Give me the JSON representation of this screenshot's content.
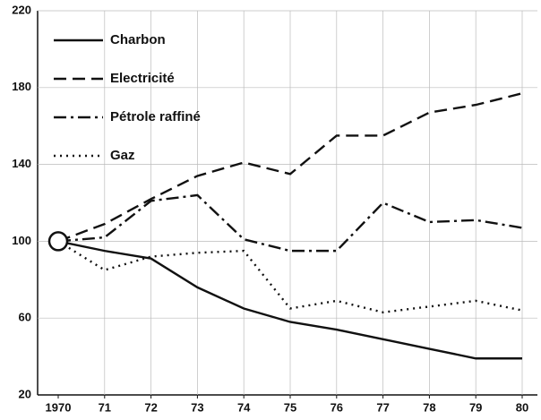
{
  "chart_data": {
    "type": "line",
    "categories": [
      "1970",
      "71",
      "72",
      "73",
      "74",
      "75",
      "76",
      "77",
      "78",
      "79",
      "80"
    ],
    "series": [
      {
        "name": "Charbon",
        "color": "#111111",
        "dash": "solid",
        "values": [
          100,
          95,
          91,
          76,
          65,
          58,
          54,
          49,
          44,
          39,
          39
        ]
      },
      {
        "name": "Electricité",
        "color": "#111111",
        "dash": "dashed",
        "values": [
          100,
          109,
          122,
          134,
          141,
          135,
          155,
          155,
          167,
          171,
          177
        ]
      },
      {
        "name": "Pétrole raffiné",
        "color": "#111111",
        "dash": "dashdot",
        "values": [
          100,
          102,
          121,
          124,
          101,
          95,
          95,
          120,
          110,
          111,
          107
        ]
      },
      {
        "name": "Gaz",
        "color": "#111111",
        "dash": "dotted",
        "values": [
          100,
          85,
          92,
          94,
          95,
          65,
          69,
          63,
          66,
          69,
          64
        ]
      }
    ],
    "ylim": [
      20,
      220
    ],
    "yticks": [
      20,
      60,
      100,
      140,
      180,
      220
    ],
    "grid": true,
    "legend": "upper left"
  }
}
